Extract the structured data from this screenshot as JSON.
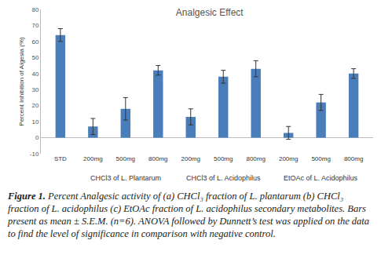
{
  "chart_data": {
    "type": "bar",
    "title": "Analgesic Effect",
    "y_label": "Percent Inhibition of Algesia (%)",
    "categories": [
      "STD",
      "200mg",
      "500mg",
      "800mg",
      "200mg",
      "500mg",
      "800mg",
      "200mg",
      "500mg",
      "800mg"
    ],
    "values": [
      64,
      7,
      18,
      42,
      13,
      38,
      43,
      3,
      22,
      40
    ],
    "errors": [
      4,
      5,
      7,
      3,
      5,
      4,
      5,
      4,
      5,
      3
    ],
    "groups": [
      {
        "label": "CHCl3 of L. Plantarum",
        "members": [
          1,
          2,
          3
        ]
      },
      {
        "label": "CHCl3 of L. Acidophilus",
        "members": [
          4,
          5,
          6
        ]
      },
      {
        "label": "EtOAc of L. Acidophilus",
        "members": [
          7,
          8,
          9
        ]
      }
    ],
    "color": "#4a7ebb",
    "ylim": [
      -10,
      80
    ],
    "yticks": [
      -10,
      0,
      10,
      20,
      30,
      40,
      50,
      60,
      70,
      80
    ],
    "grid": false,
    "caption": {
      "label": "Figure 1.",
      "text": "Percent Analgesic activity of (a) CHCl₃ fraction of L. plantarum (b) CHCl₃ fraction of L. acidophilus (c) EtOAc fraction of L. acidophilus secondary metabolites. Bars present as mean ± S.E.M. (n=6). ANOVA followed by Dunnett’s test was applied on the data to find the level of significance in comparison with negative control."
    }
  }
}
